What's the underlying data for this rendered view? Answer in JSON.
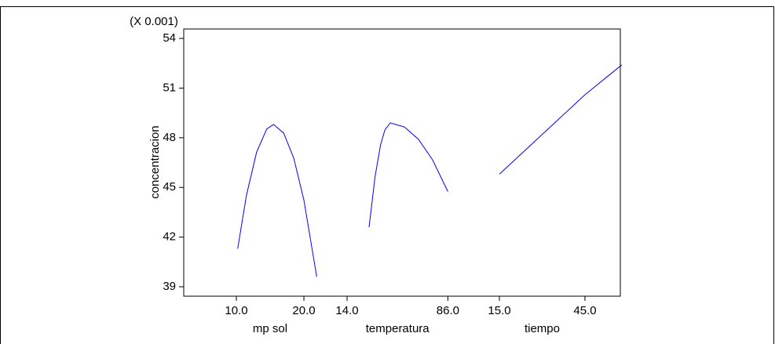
{
  "chart_data": {
    "type": "line",
    "ylabel": "concentracion",
    "y_multiplier": "(X 0.001)",
    "ylim": [
      38.43,
      54.57
    ],
    "yticks": [
      39,
      42,
      45,
      48,
      51,
      54
    ],
    "color": "#0000ff",
    "panels": [
      {
        "xlabel": "mp sol",
        "xlim": [
          8.72,
          22.67
        ],
        "xticks": [
          {
            "value": 10,
            "label": "10.0"
          },
          {
            "value": 20,
            "label": "20.0"
          }
        ],
        "x": [
          10.2,
          11.5,
          13,
          14.5,
          15.5,
          17,
          18.5,
          20,
          21.9
        ],
        "values": [
          41.3,
          44.53,
          47.13,
          48.53,
          48.8,
          48.29,
          46.77,
          44.24,
          39.6
        ]
      },
      {
        "xlabel": "temperatura",
        "xlim": [
          10.06,
          91.4
        ],
        "xticks": [
          {
            "value": 14,
            "label": "14.0"
          },
          {
            "value": 86,
            "label": "86.0"
          }
        ],
        "x": [
          29.7,
          34,
          38,
          41,
          44.9,
          55,
          65,
          75,
          86
        ],
        "values": [
          42.6,
          45.66,
          47.6,
          48.48,
          48.9,
          48.65,
          47.91,
          46.67,
          44.75
        ]
      },
      {
        "xlabel": "tiempo",
        "xlim": [
          11.97,
          57.4
        ],
        "xticks": [
          {
            "value": 15,
            "label": "15.0"
          },
          {
            "value": 45,
            "label": "45.0"
          }
        ],
        "x": [
          15,
          25,
          35,
          45,
          57.9
        ],
        "values": [
          45.8,
          47.4,
          49.0,
          50.6,
          52.4
        ]
      }
    ]
  }
}
